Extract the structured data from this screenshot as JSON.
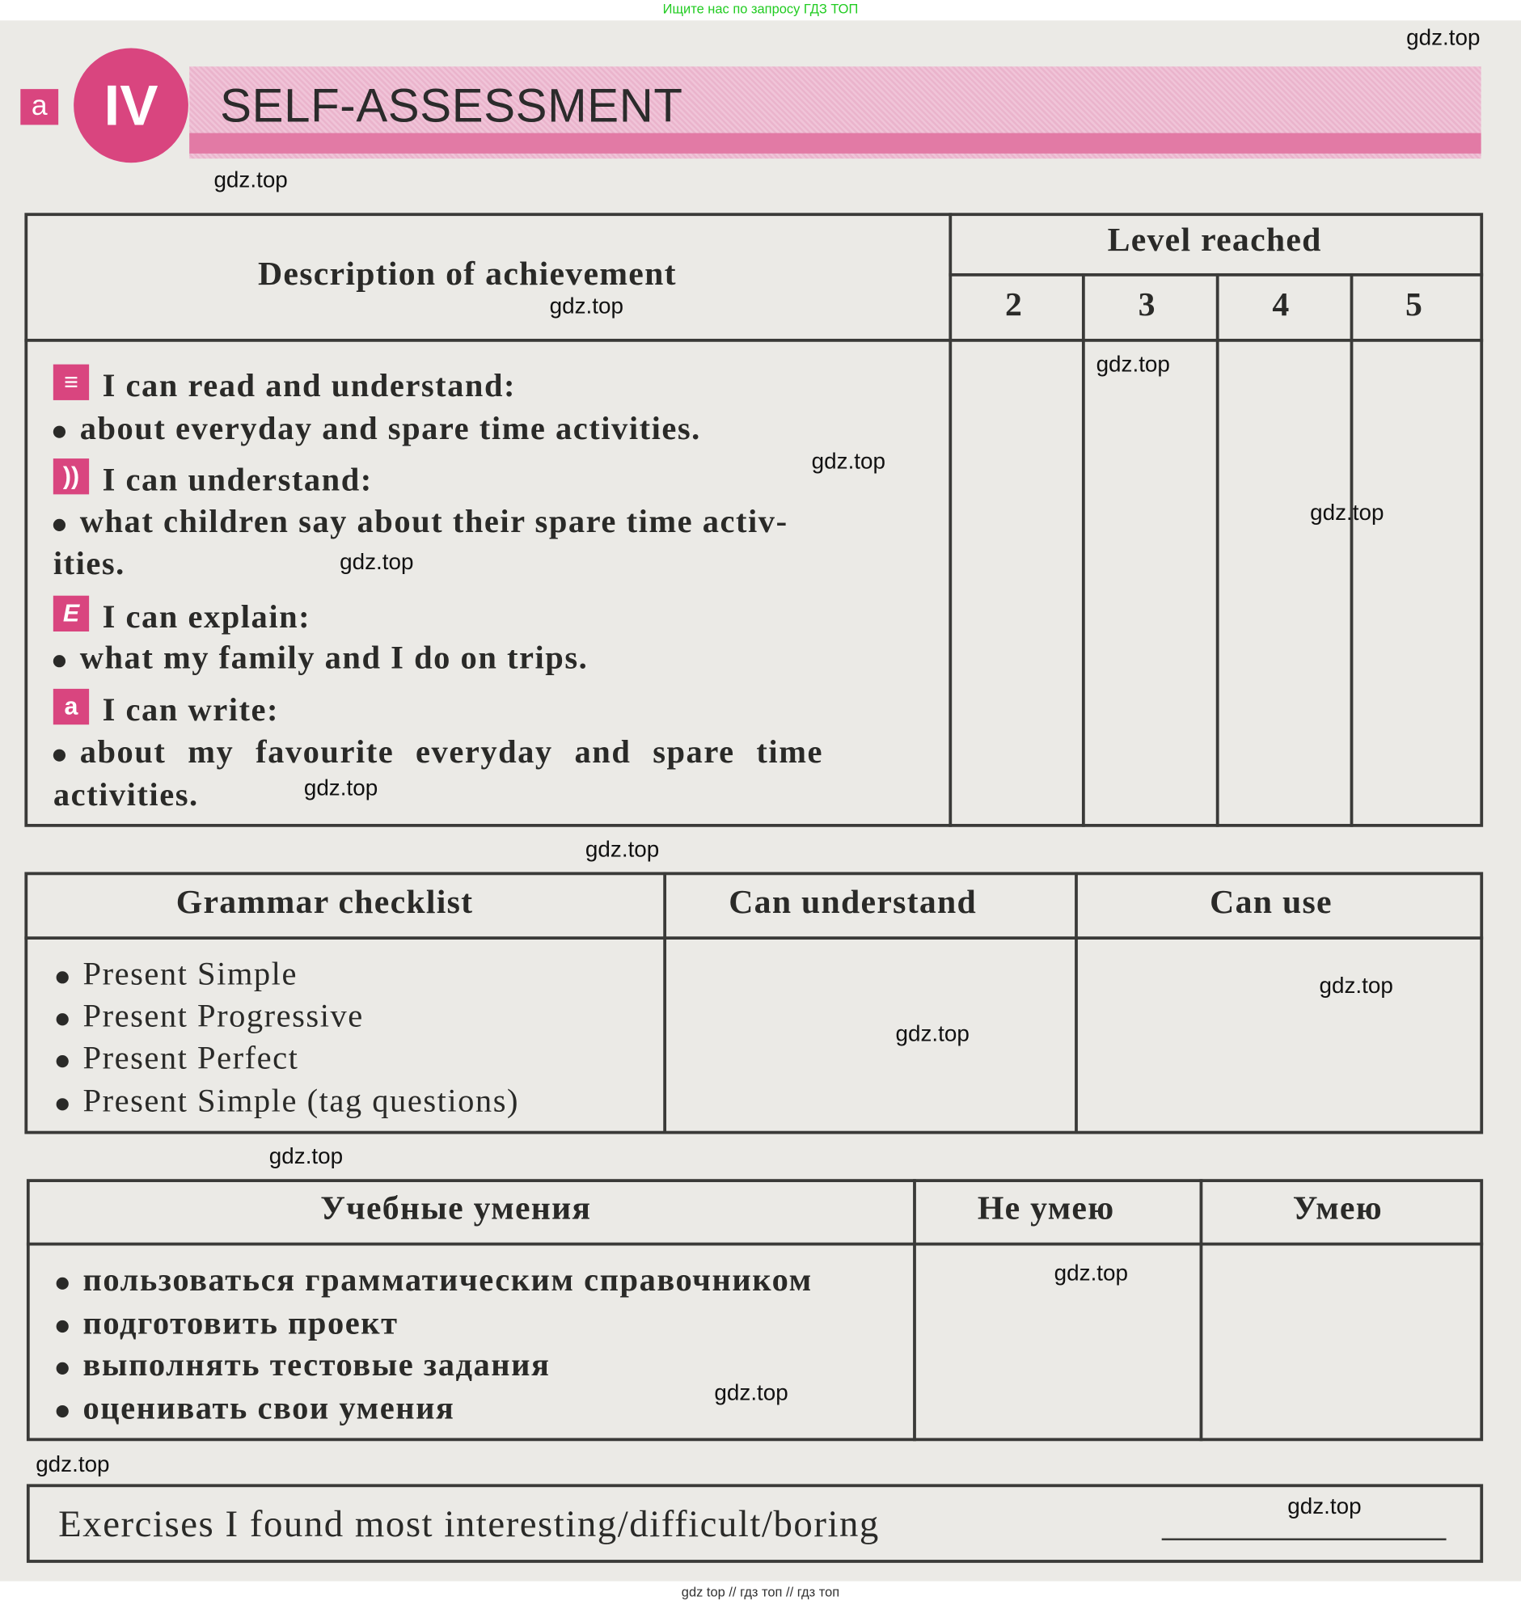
{
  "top_banner": "Ищите нас по запросу ГДЗ ТОП",
  "bottom_banner": "gdz top  //  гдз топ  //  гдз топ",
  "header": {
    "unit_number": "IV",
    "title": "SELF-ASSESSMENT",
    "badge_icon": "write-icon",
    "accent_color": "#d9457f"
  },
  "achievement_table": {
    "col_description": "Description of achievement",
    "col_level": "Level reached",
    "levels": [
      "2",
      "3",
      "4",
      "5"
    ],
    "sections": [
      {
        "icon": "reading-icon",
        "glyph": "≡",
        "heading": "I can read and understand:",
        "lines": [
          "about everyday and spare time activities."
        ]
      },
      {
        "icon": "listening-icon",
        "glyph": "))",
        "heading": "I can understand:",
        "lines": [
          "what children say about their spare time activ-",
          "ities."
        ]
      },
      {
        "icon": "speaking-icon",
        "glyph": "E",
        "heading": "I can explain:",
        "lines": [
          "what my family and I do on trips."
        ]
      },
      {
        "icon": "writing-icon",
        "glyph": "a",
        "heading": "I can write:",
        "lines": [
          "about my favourite everyday and spare time",
          "activities."
        ]
      }
    ]
  },
  "grammar_table": {
    "headers": [
      "Grammar checklist",
      "Can understand",
      "Can use"
    ],
    "items": [
      "Present Simple",
      "Present Progressive",
      "Present Perfect",
      "Present Simple (tag questions)"
    ]
  },
  "skills_table": {
    "headers": [
      "Учебные умения",
      "Не умею",
      "Умею"
    ],
    "items": [
      "пользоваться грамматическим справочником",
      "подготовить проект",
      "выполнять тестовые задания",
      "оценивать свои умения"
    ]
  },
  "exercises": {
    "label": "Exercises I found most interesting/difficult/boring",
    "value": ""
  },
  "watermark": "gdz.top"
}
